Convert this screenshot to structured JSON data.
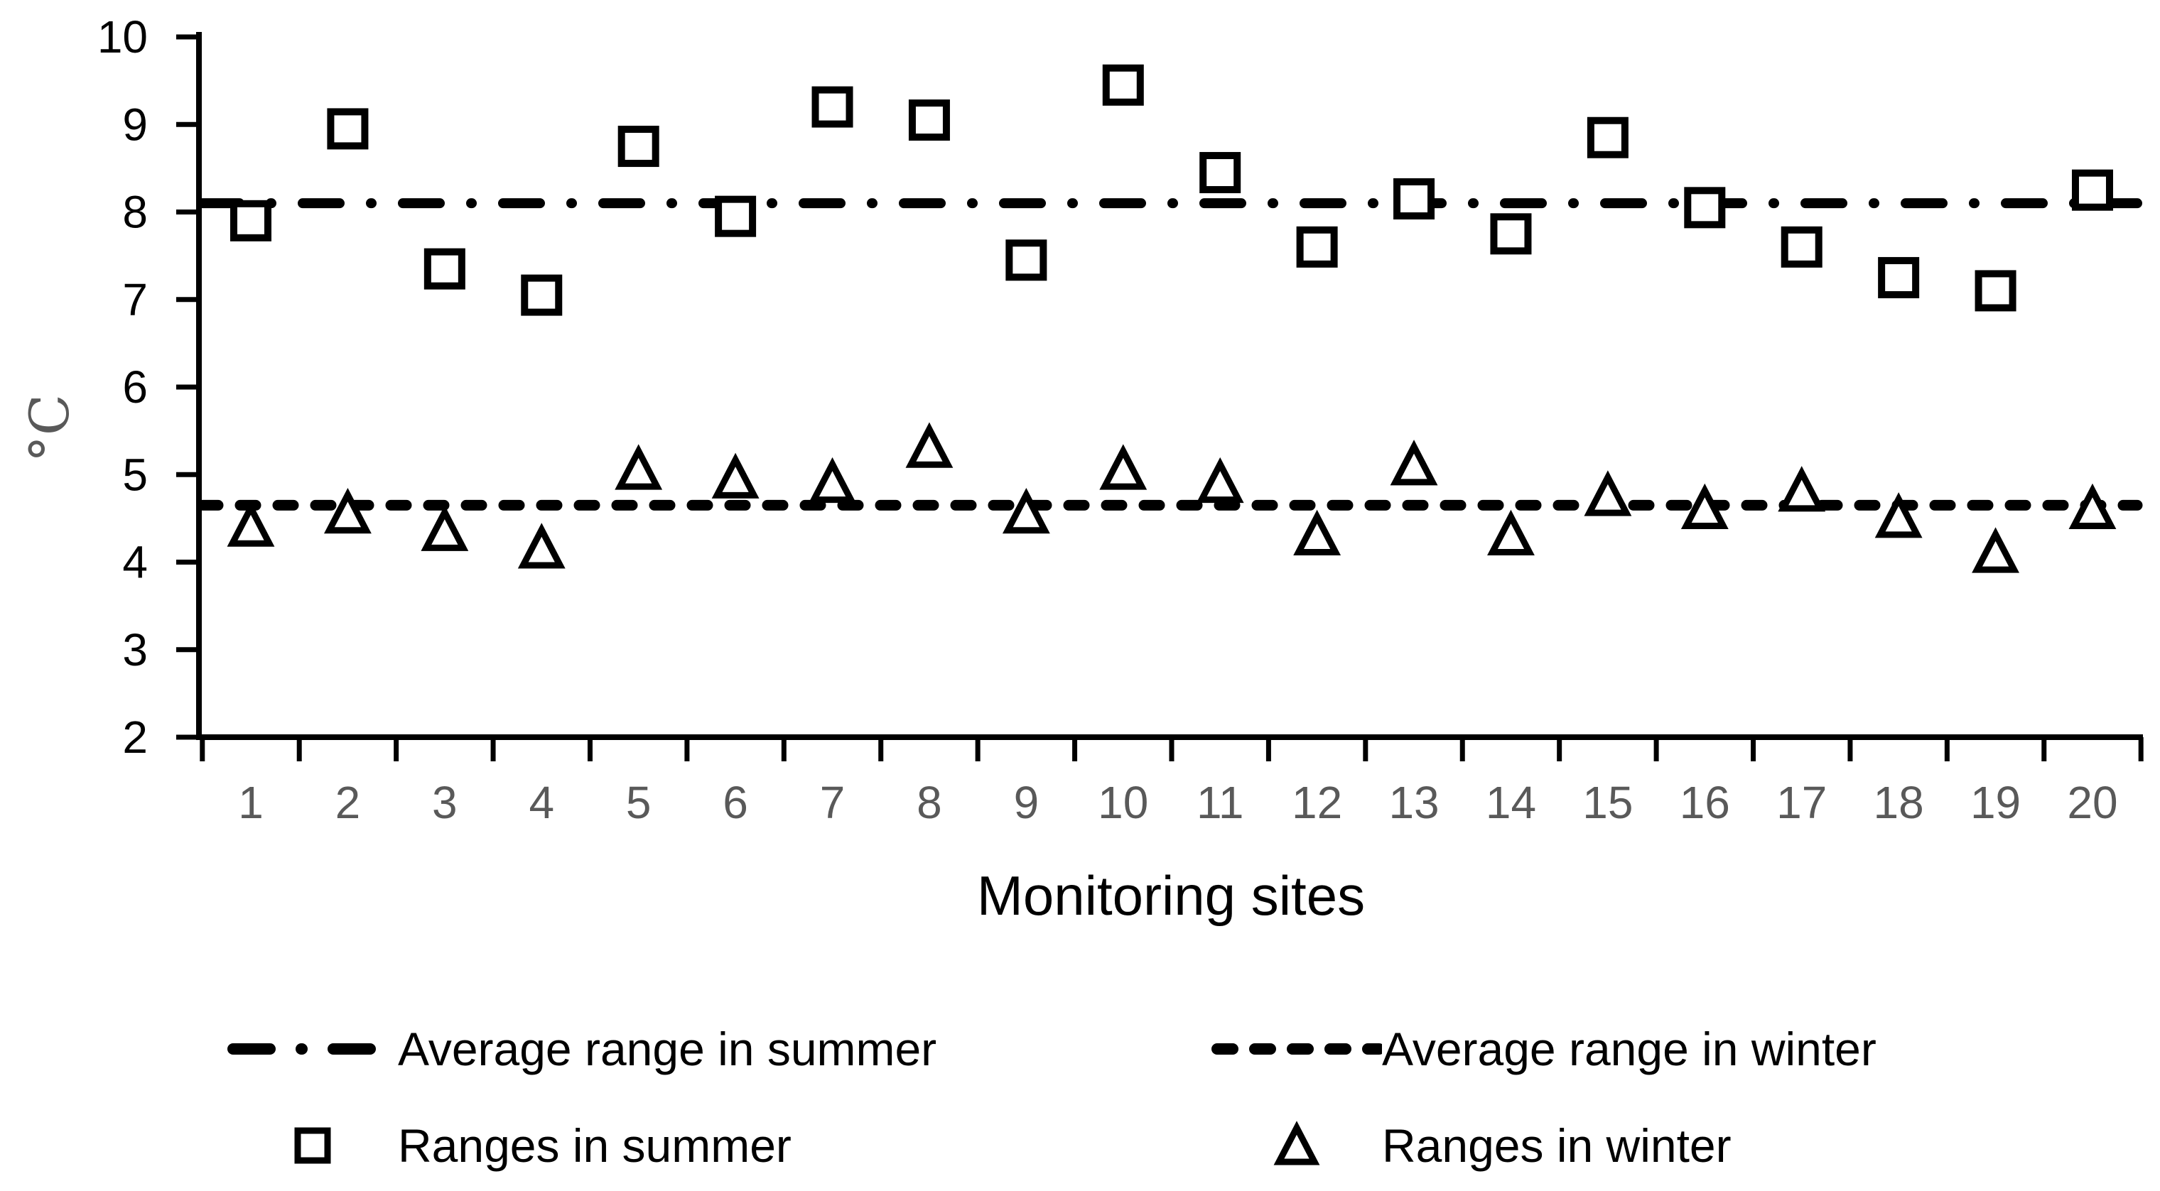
{
  "chart_data": {
    "type": "scatter",
    "xlabel": "Monitoring sites",
    "ylabel": "°C",
    "ylim": [
      2,
      10
    ],
    "y_ticks": [
      10,
      9,
      8,
      7,
      6,
      5,
      4,
      3,
      2
    ],
    "x": [
      1,
      2,
      3,
      4,
      5,
      6,
      7,
      8,
      9,
      10,
      11,
      12,
      13,
      14,
      15,
      16,
      17,
      18,
      19,
      20
    ],
    "series": [
      {
        "name": "Ranges in summer",
        "marker": "square",
        "values": [
          7.9,
          8.95,
          7.35,
          7.05,
          8.75,
          7.95,
          9.2,
          9.05,
          7.45,
          9.45,
          8.45,
          7.6,
          8.15,
          7.75,
          8.85,
          8.05,
          7.6,
          7.25,
          7.1,
          8.25
        ]
      },
      {
        "name": "Ranges in winter",
        "marker": "triangle",
        "values": [
          4.4,
          4.55,
          4.35,
          4.15,
          5.05,
          4.95,
          4.9,
          5.3,
          4.55,
          5.05,
          4.9,
          4.3,
          5.1,
          4.3,
          4.75,
          4.6,
          4.8,
          4.5,
          4.1,
          4.6
        ]
      }
    ],
    "reference_lines": [
      {
        "name": "Average range in summer",
        "style": "dash-dot",
        "value": 8.1
      },
      {
        "name": "Average range in winter",
        "style": "dashed",
        "value": 4.65
      }
    ],
    "grid": false,
    "legend_position": "bottom"
  },
  "legend": {
    "items": [
      {
        "label": "Average range in summer",
        "sample": "dash-dot-line"
      },
      {
        "label": "Average range in winter",
        "sample": "dashed-line"
      },
      {
        "label": "Ranges in summer",
        "sample": "square-marker"
      },
      {
        "label": "Ranges in winter",
        "sample": "triangle-marker"
      }
    ]
  },
  "colors": {
    "ink": "#000000",
    "axis_label_muted": "#595959",
    "background": "#ffffff",
    "marker_fill": "#ffffff"
  }
}
